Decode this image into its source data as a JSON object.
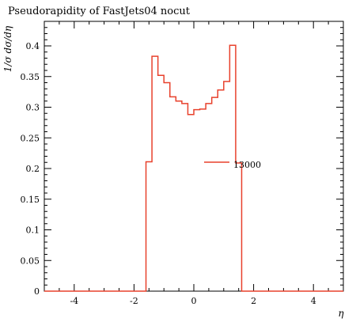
{
  "chart_data": {
    "type": "line",
    "title": "Pseudorapidity of FastJets04 nocut",
    "xlabel": "η",
    "ylabel": "1/σ dσ/dη",
    "xlim": [
      -5,
      5
    ],
    "ylim": [
      0,
      0.44
    ],
    "xticks": [
      -4,
      -2,
      0,
      2,
      4
    ],
    "yticks": [
      0,
      0.05,
      0.1,
      0.15,
      0.2,
      0.25,
      0.3,
      0.35,
      0.4
    ],
    "ytick_labels": [
      "0",
      "0.05",
      "0.1",
      "0.15",
      "0.2",
      "0.25",
      "0.3",
      "0.35",
      "0.4"
    ],
    "grid": false,
    "legend_position": "center-right",
    "series": [
      {
        "name": "13000",
        "color": "#e8412c",
        "style": "step",
        "bin_edges": [
          -5,
          -1.6,
          -1.4,
          -1.2,
          -1.0,
          -0.8,
          -0.6,
          -0.4,
          -0.2,
          0,
          0.2,
          0.4,
          0.6,
          0.8,
          1.0,
          1.2,
          1.4,
          1.6,
          5
        ],
        "values": [
          0,
          0.211,
          0.383,
          0.352,
          0.34,
          0.317,
          0.31,
          0.306,
          0.288,
          0.296,
          0.297,
          0.306,
          0.316,
          0.328,
          0.342,
          0.401,
          0.209,
          0
        ]
      }
    ]
  }
}
